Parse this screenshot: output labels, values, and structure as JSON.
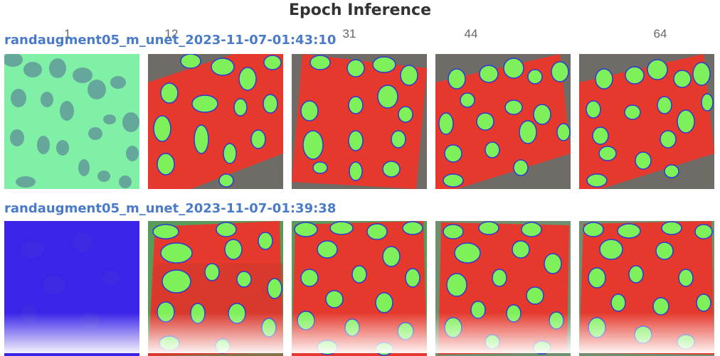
{
  "panel": {
    "title": "Epoch Inference",
    "epochs": [
      "1",
      "12",
      "31",
      "44",
      "64"
    ]
  },
  "runs": [
    {
      "name": "randaugment05_m_unet_2023-11-07-01:43:10"
    },
    {
      "name": "randaugment05_m_unet_2023-11-07-01:39:38"
    }
  ],
  "colors": {
    "background_class": "#e5392d",
    "nucleus_class": "#7ef05a",
    "boundary": "#2a3bd4",
    "padding": "#6f6b66",
    "input_green_tint": "#7ff0a6",
    "input_blue_tint": "#3a24e8"
  }
}
